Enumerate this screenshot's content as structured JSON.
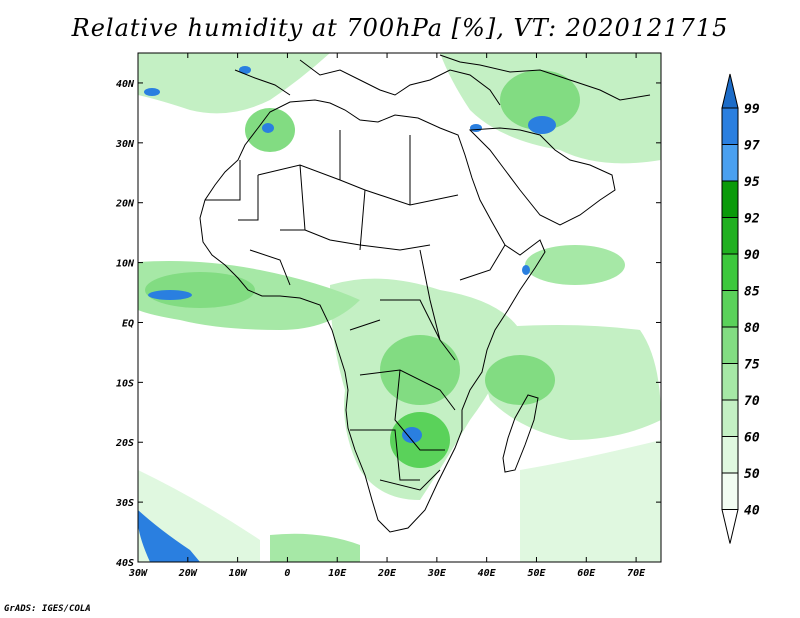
{
  "title": "Relative humidity at 700hPa [%], VT: 2020121715",
  "credit": "GrADS: IGES/COLA",
  "map": {
    "lon_range": [
      -30,
      75
    ],
    "lat_range": [
      -40,
      45
    ],
    "lon_ticks": [
      "30W",
      "20W",
      "10W",
      "0",
      "10E",
      "20E",
      "30E",
      "40E",
      "50E",
      "60E",
      "70E"
    ],
    "lat_ticks": [
      "40N",
      "30N",
      "20N",
      "10N",
      "EQ",
      "10S",
      "20S",
      "30S",
      "40S"
    ],
    "background": "#ffffff",
    "coastline_color": "#000000"
  },
  "colorbar": {
    "levels": [
      "99",
      "97",
      "95",
      "92",
      "90",
      "85",
      "80",
      "75",
      "70",
      "60",
      "50",
      "40"
    ],
    "colors": [
      "#0a5fd0",
      "#2a7fe0",
      "#4aa0f0",
      "#0a9a0a",
      "#20b020",
      "#3cc83c",
      "#5ad25a",
      "#82dc82",
      "#a6e8a6",
      "#c4f0c4",
      "#e0f8e0",
      "#f2fcf2"
    ],
    "top_arrow_color": "#1c6cc8",
    "bottom_arrow_color": "#ffffff"
  }
}
